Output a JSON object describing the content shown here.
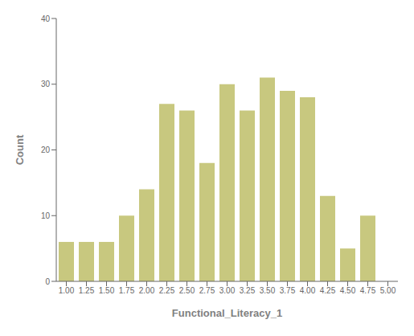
{
  "chart_data": {
    "type": "bar",
    "categories": [
      "1.00",
      "1.25",
      "1.50",
      "1.75",
      "2.00",
      "2.25",
      "2.50",
      "2.75",
      "3.00",
      "3.25",
      "3.50",
      "3.75",
      "4.00",
      "4.25",
      "4.50",
      "4.75",
      "5.00"
    ],
    "values": [
      6,
      6,
      6,
      10,
      14,
      27,
      26,
      18,
      30,
      26,
      31,
      29,
      28,
      13,
      5,
      10,
      0
    ],
    "color": "#c8c87f",
    "xlabel": "Functional_Literacy_1",
    "ylabel": "Count",
    "ylim": [
      0,
      40
    ],
    "yticks": [
      0,
      10,
      20,
      30,
      40
    ],
    "grid": false
  }
}
